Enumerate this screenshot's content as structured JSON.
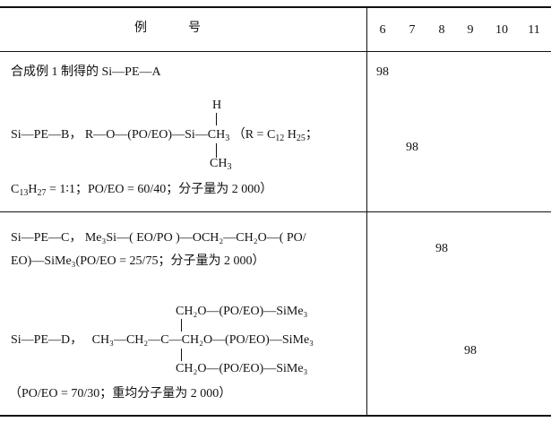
{
  "header": {
    "label_col": "例　　　号",
    "columns": [
      "6",
      "7",
      "8",
      "9",
      "10",
      "11"
    ]
  },
  "rows": [
    {
      "text": "合成例 1 制得的 Si—PE—A",
      "value": "98",
      "column": "6"
    },
    {
      "name": "Si—PE—B，",
      "formula_main": "R—O—(PO/EO)—Si—CH",
      "sub3": "3",
      "paren_open": "（R = C",
      "sub12": "12",
      "h": " H",
      "sub25": "25",
      "semi": "；",
      "top": "H",
      "bottom": "CH",
      "note_c": "C",
      "sub13": "13",
      "note_h": "H",
      "sub27": "27",
      "note_rest": " = 1∶1；PO/EO = 60/40；分子量为 2 000）",
      "value": "98",
      "column": "7"
    },
    {
      "line1": "Si—PE—C，  Me₃Si—( EO/PO )—OCH₂—CH₂O—( PO/",
      "line2": "EO)—SiMe₃(PO/EO = 25/75；分子量为 2 000）",
      "value": "98",
      "column": "8"
    },
    {
      "name": "Si—PE—D，",
      "main": "CH₃—CH₂—C—CH₂O—(PO/EO)—SiMe₃",
      "top": "CH₂O—(PO/EO)—SiMe₃",
      "bottom": "CH₂O—(PO/EO)—SiMe₃",
      "note": "（PO/EO = 70/30；重均分子量为 2 000）",
      "value": "98",
      "column": "9"
    }
  ]
}
